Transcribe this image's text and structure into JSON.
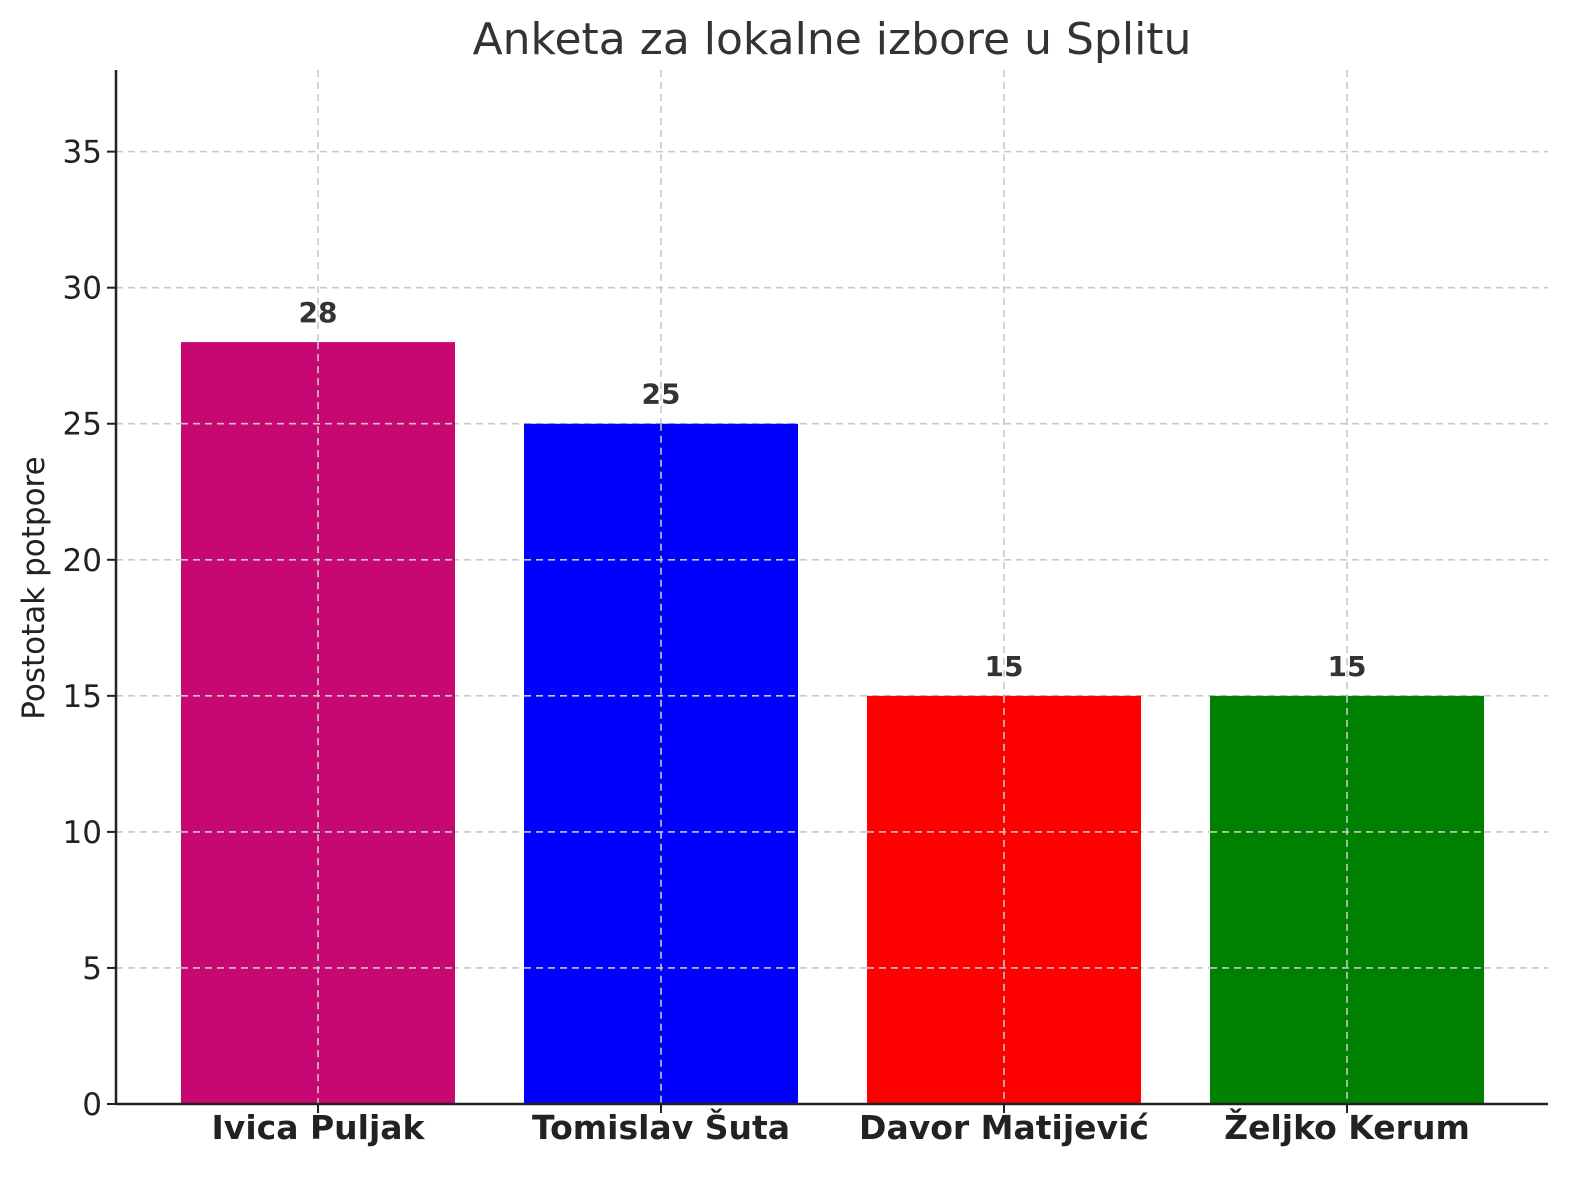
{
  "chart_data": {
    "type": "bar",
    "title": "Anketa za lokalne izbore u Splitu",
    "xlabel": "",
    "ylabel": "Postotak potpore",
    "categories": [
      "Ivica Puljak",
      "Tomislav Šuta",
      "Davor Matijević",
      "Željko Kerum"
    ],
    "values": [
      28,
      25,
      15,
      15
    ],
    "value_labels": [
      "28",
      "25",
      "15",
      "15"
    ],
    "colors": [
      "#c70772",
      "#0000ff",
      "#ff0000",
      "#008000"
    ],
    "ylim": [
      0,
      38
    ],
    "yticks": [
      0,
      5,
      10,
      15,
      20,
      25,
      30,
      35
    ],
    "ytick_labels": [
      "0",
      "5",
      "10",
      "15",
      "20",
      "25",
      "30",
      "35"
    ],
    "grid": true,
    "grid_style": "dashed",
    "legend": false
  }
}
